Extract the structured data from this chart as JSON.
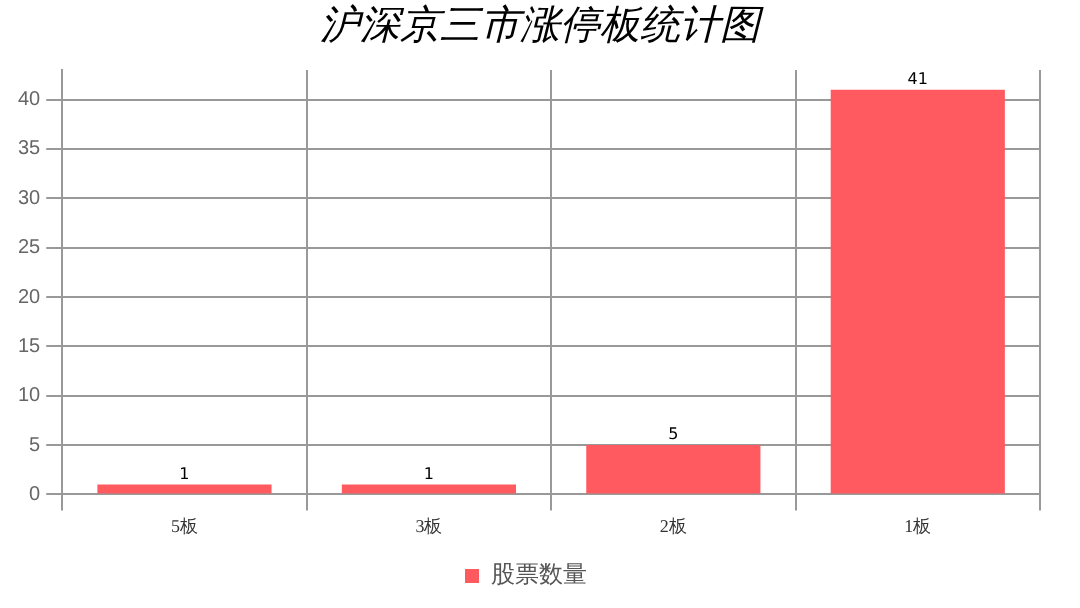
{
  "chart_data": {
    "type": "bar",
    "title": "沪深京三市涨停板统计图",
    "categories": [
      "5板",
      "3板",
      "2板",
      "1板"
    ],
    "series": [
      {
        "name": "股票数量",
        "color": "#ff5a5f",
        "values": [
          1,
          1,
          5,
          41
        ]
      }
    ],
    "ylim": [
      0,
      43
    ],
    "yticks": [
      0,
      5,
      10,
      15,
      20,
      25,
      30,
      35,
      40
    ],
    "grid": true,
    "legend": "bottom",
    "data_labels": true
  }
}
